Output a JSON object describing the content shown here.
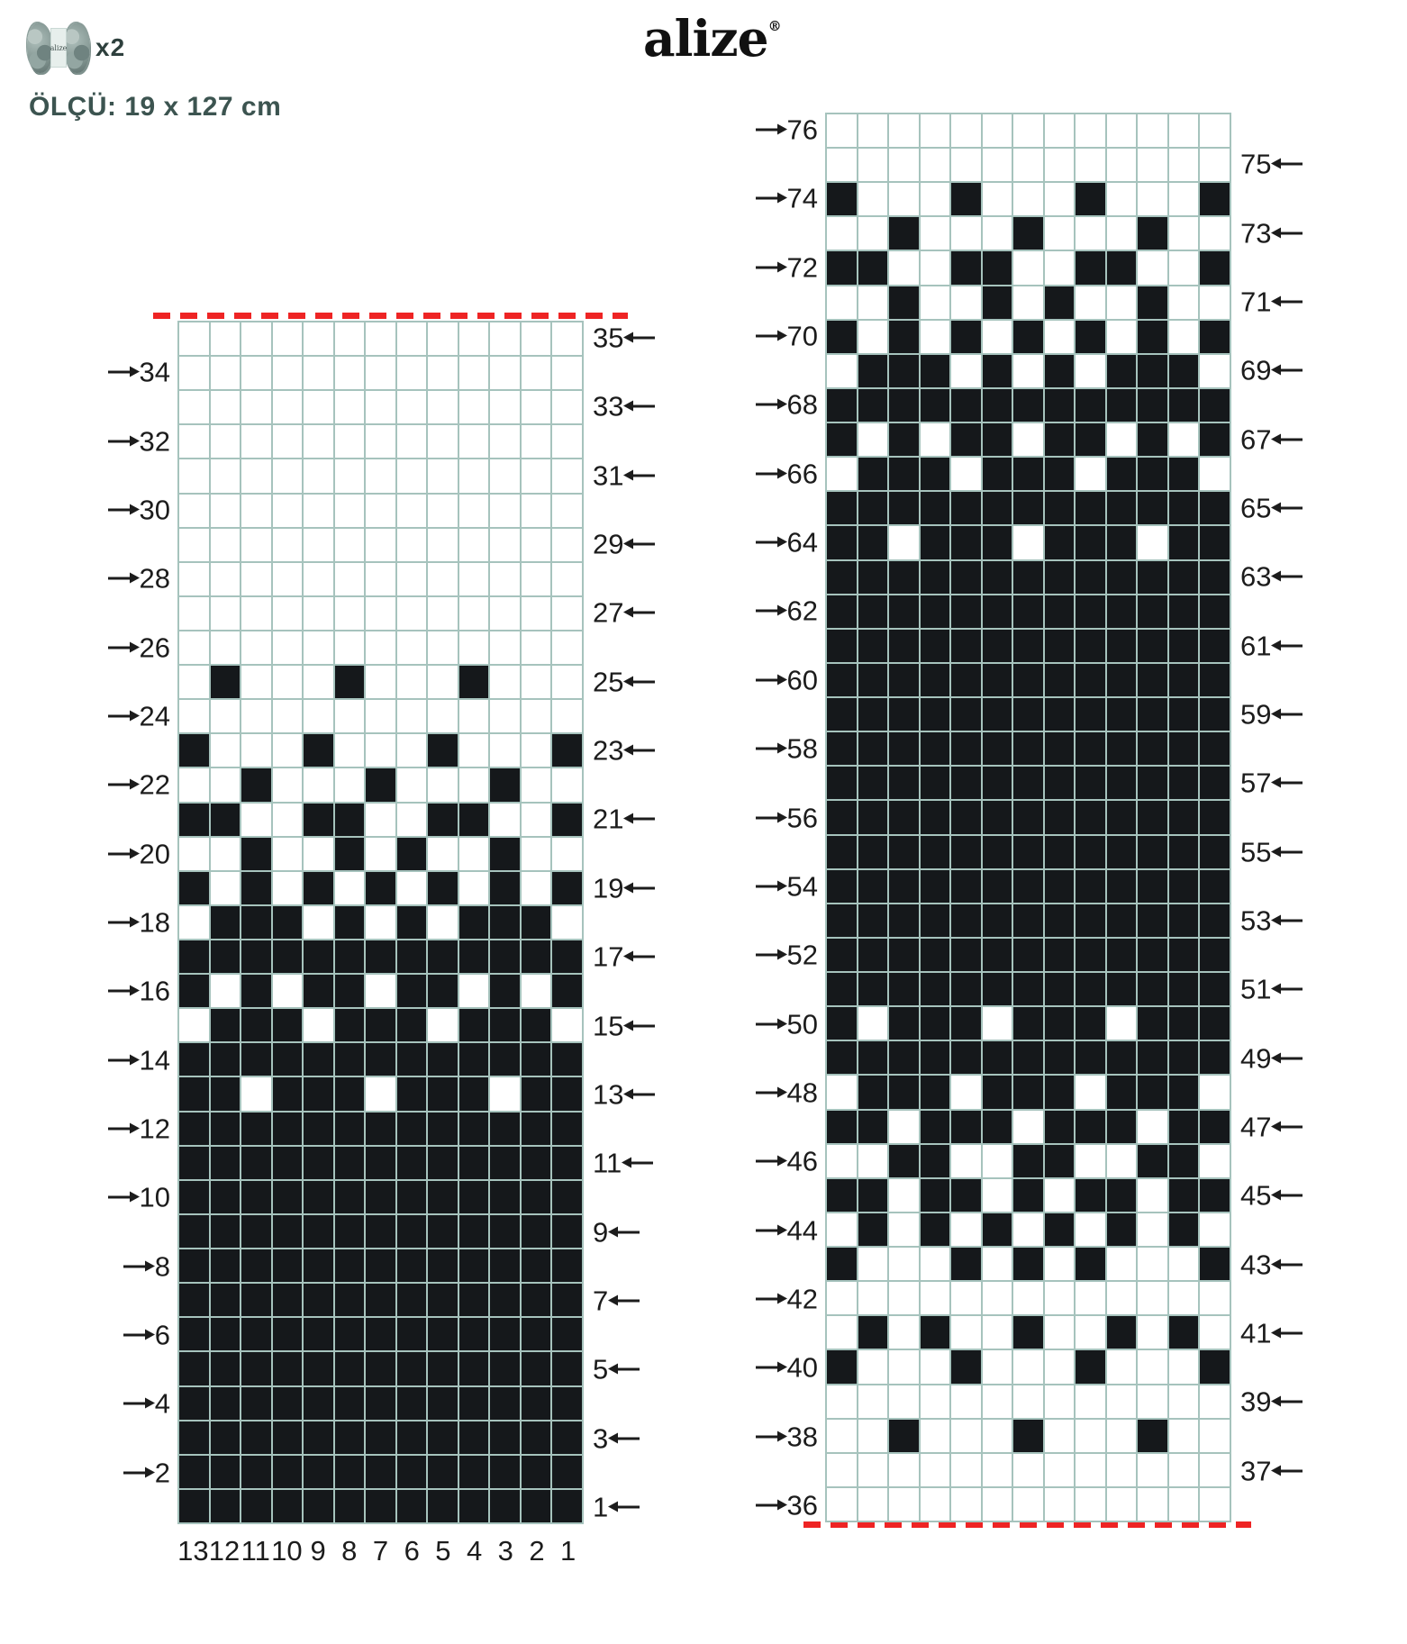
{
  "header": {
    "brand_logo": "alize",
    "registered_mark": "®",
    "yarn_count": "x2",
    "yarn_band_text": "alize",
    "size_label": "ÖLÇÜ: 19 x 127 cm"
  },
  "colors": {
    "cell_black": "#15181b",
    "grid_line": "#a6c3bd",
    "red_dash": "#ee2424",
    "label_text": "#1c1c1c",
    "header_text": "#3c5450"
  },
  "chart_data": {
    "type": "heatmap",
    "note": "Knitting colorwork charts; cells strings run left-to-right, 1=black stitch, 0=white stitch",
    "left_chart": {
      "column_numbers": [
        "13",
        "12",
        "11",
        "10",
        "9",
        "8",
        "7",
        "6",
        "5",
        "4",
        "3",
        "2",
        "1"
      ],
      "red_dash_position": "top",
      "rows": [
        {
          "n": 35,
          "cells": "0000000000000"
        },
        {
          "n": 34,
          "cells": "0000000000000"
        },
        {
          "n": 33,
          "cells": "0000000000000"
        },
        {
          "n": 32,
          "cells": "0000000000000"
        },
        {
          "n": 31,
          "cells": "0000000000000"
        },
        {
          "n": 30,
          "cells": "0000000000000"
        },
        {
          "n": 29,
          "cells": "0000000000000"
        },
        {
          "n": 28,
          "cells": "0000000000000"
        },
        {
          "n": 27,
          "cells": "0000000000000"
        },
        {
          "n": 26,
          "cells": "0000000000000"
        },
        {
          "n": 25,
          "cells": "0100010001000"
        },
        {
          "n": 24,
          "cells": "0000000000000"
        },
        {
          "n": 23,
          "cells": "1000100010001"
        },
        {
          "n": 22,
          "cells": "0010001000100"
        },
        {
          "n": 21,
          "cells": "1100110011001"
        },
        {
          "n": 20,
          "cells": "0010010100100"
        },
        {
          "n": 19,
          "cells": "1010101010101"
        },
        {
          "n": 18,
          "cells": "0111010101110"
        },
        {
          "n": 17,
          "cells": "1111111111111"
        },
        {
          "n": 16,
          "cells": "1010110110101"
        },
        {
          "n": 15,
          "cells": "0111011101110"
        },
        {
          "n": 14,
          "cells": "1111111111111"
        },
        {
          "n": 13,
          "cells": "1101110111011"
        },
        {
          "n": 12,
          "cells": "1111111111111"
        },
        {
          "n": 11,
          "cells": "1111111111111"
        },
        {
          "n": 10,
          "cells": "1111111111111"
        },
        {
          "n": 9,
          "cells": "1111111111111"
        },
        {
          "n": 8,
          "cells": "1111111111111"
        },
        {
          "n": 7,
          "cells": "1111111111111"
        },
        {
          "n": 6,
          "cells": "1111111111111"
        },
        {
          "n": 5,
          "cells": "1111111111111"
        },
        {
          "n": 4,
          "cells": "1111111111111"
        },
        {
          "n": 3,
          "cells": "1111111111111"
        },
        {
          "n": 2,
          "cells": "1111111111111"
        },
        {
          "n": 1,
          "cells": "1111111111111"
        }
      ]
    },
    "right_chart": {
      "column_numbers": [],
      "red_dash_position": "bottom",
      "rows": [
        {
          "n": 76,
          "cells": "0000000000000"
        },
        {
          "n": 75,
          "cells": "0000000000000"
        },
        {
          "n": 74,
          "cells": "1000100010001"
        },
        {
          "n": 73,
          "cells": "0010001000100"
        },
        {
          "n": 72,
          "cells": "1100110011001"
        },
        {
          "n": 71,
          "cells": "0010010100100"
        },
        {
          "n": 70,
          "cells": "1010101010101"
        },
        {
          "n": 69,
          "cells": "0111010101110"
        },
        {
          "n": 68,
          "cells": "1111111111111"
        },
        {
          "n": 67,
          "cells": "1010110110101"
        },
        {
          "n": 66,
          "cells": "0111011101110"
        },
        {
          "n": 65,
          "cells": "1111111111111"
        },
        {
          "n": 64,
          "cells": "1101110111011"
        },
        {
          "n": 63,
          "cells": "1111111111111"
        },
        {
          "n": 62,
          "cells": "1111111111111"
        },
        {
          "n": 61,
          "cells": "1111111111111"
        },
        {
          "n": 60,
          "cells": "1111111111111"
        },
        {
          "n": 59,
          "cells": "1111111111111"
        },
        {
          "n": 58,
          "cells": "1111111111111"
        },
        {
          "n": 57,
          "cells": "1111111111111"
        },
        {
          "n": 56,
          "cells": "1111111111111"
        },
        {
          "n": 55,
          "cells": "1111111111111"
        },
        {
          "n": 54,
          "cells": "1111111111111"
        },
        {
          "n": 53,
          "cells": "1111111111111"
        },
        {
          "n": 52,
          "cells": "1111111111111"
        },
        {
          "n": 51,
          "cells": "1111111111111"
        },
        {
          "n": 50,
          "cells": "1011101110111"
        },
        {
          "n": 49,
          "cells": "1111111111111"
        },
        {
          "n": 48,
          "cells": "0111011101110"
        },
        {
          "n": 47,
          "cells": "1101110111011"
        },
        {
          "n": 46,
          "cells": "0011001100110"
        },
        {
          "n": 45,
          "cells": "1101101011011"
        },
        {
          "n": 44,
          "cells": "0101010101010"
        },
        {
          "n": 43,
          "cells": "1000101010001"
        },
        {
          "n": 42,
          "cells": "0000000000000"
        },
        {
          "n": 41,
          "cells": "0101001001010"
        },
        {
          "n": 40,
          "cells": "1000100010001"
        },
        {
          "n": 39,
          "cells": "0000000000000"
        },
        {
          "n": 38,
          "cells": "0010001000100"
        },
        {
          "n": 37,
          "cells": "0000000000000"
        },
        {
          "n": 36,
          "cells": "0000000000000"
        }
      ]
    }
  }
}
